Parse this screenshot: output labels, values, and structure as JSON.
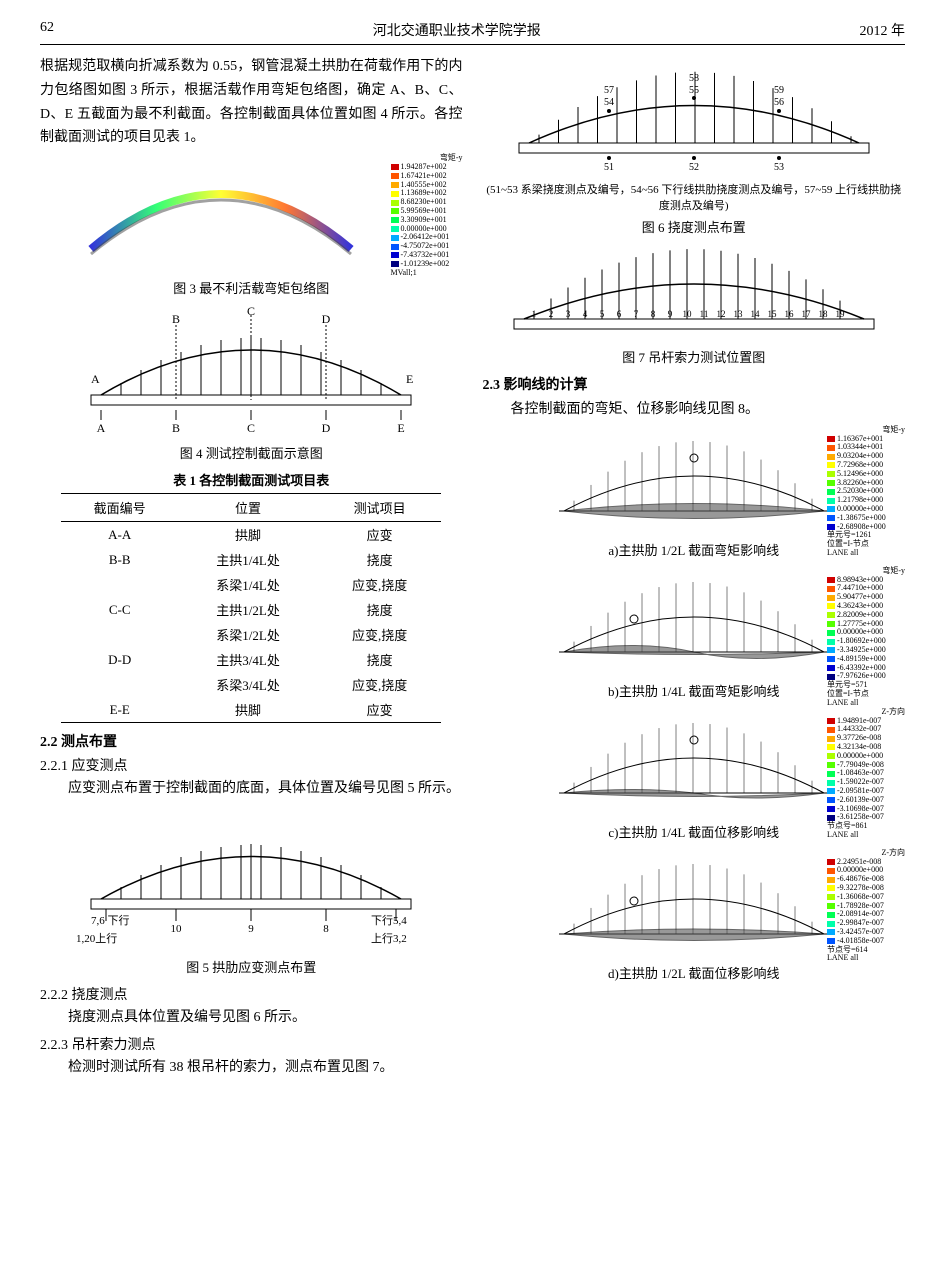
{
  "header": {
    "page_number": "62",
    "journal_title": "河北交通职业技术学院学报",
    "year": "2012 年"
  },
  "left_col": {
    "para1": "根据规范取横向折减系数为 0.55，钢管混凝土拱肋在荷载作用下的内力包络图如图 3 所示，根据活载作用弯矩包络图，确定 A、B、C、D、E 五截面为最不利截面。各控制截面具体位置如图 4 所示。各控制截面测试的项目见表 1。",
    "fig3_legend_title": "弯矩-y",
    "fig3_legend_values": [
      "1.94287e+002",
      "1.67421e+002",
      "1.40555e+002",
      "1.13689e+002",
      "8.68230e+001",
      "5.99569e+001",
      "3.30909e+001",
      "0.00000e+000",
      "-2.06412e+001",
      "-4.75072e+001",
      "-7.43732e+001",
      "-1.01239e+002"
    ],
    "fig3_legend_colors": [
      "#d00000",
      "#ff5500",
      "#ffaa00",
      "#ffff00",
      "#aaff00",
      "#55ff00",
      "#00ff55",
      "#00ffaa",
      "#00aaff",
      "#0055ff",
      "#0000d0",
      "#000080"
    ],
    "fig3_label": "MVall;1",
    "fig3_caption": "图 3  最不利活载弯矩包络图",
    "fig4": {
      "top_labels": [
        "B",
        "C",
        "D"
      ],
      "end_labels": [
        "A",
        "E"
      ],
      "bottom_labels": [
        "A",
        "B",
        "C",
        "D",
        "E"
      ],
      "caption": "图 4  测试控制截面示意图"
    },
    "table1": {
      "title": "表 1  各控制截面测试项目表",
      "headers": [
        "截面编号",
        "位置",
        "测试项目"
      ],
      "rows": [
        {
          "id": "A-A",
          "pos": "拱脚",
          "item": "应变"
        },
        {
          "id": "B-B",
          "pos": "主拱1/4L处",
          "item": "挠度"
        },
        {
          "id": "",
          "pos": "系梁1/4L处",
          "item": "应变,挠度"
        },
        {
          "id": "C-C",
          "pos": "主拱1/2L处",
          "item": "挠度"
        },
        {
          "id": "",
          "pos": "系梁1/2L处",
          "item": "应变,挠度"
        },
        {
          "id": "D-D",
          "pos": "主拱3/4L处",
          "item": "挠度"
        },
        {
          "id": "",
          "pos": "系梁3/4L处",
          "item": "应变,挠度"
        },
        {
          "id": "E-E",
          "pos": "拱脚",
          "item": "应变"
        }
      ]
    },
    "sec22": "2.2  测点布置",
    "sec221_h": "2.2.1  应变测点",
    "sec221_p": "应变测点布置于控制截面的底面，具体位置及编号见图 5 所示。",
    "fig5": {
      "left_top": "7,6 下行",
      "left_bot": "1,20上行",
      "right_top": "下行5,4",
      "right_bot": "上行3,2",
      "mid_labels": [
        "10",
        "9",
        "8"
      ],
      "caption": "图 5  拱肋应变测点布置"
    },
    "sec222_h": "2.2.2  挠度测点",
    "sec222_p": "挠度测点具体位置及编号见图 6 所示。",
    "sec223_h": "2.2.3  吊杆索力测点",
    "sec223_p": "检测时测试所有 38 根吊杆的索力，测点布置见图 7。"
  },
  "right_col": {
    "fig6": {
      "top_points": [
        "57",
        "54",
        "58",
        "55",
        "59",
        "56"
      ],
      "bottom_points": [
        "51",
        "52",
        "53"
      ],
      "note": "(51~53 系梁挠度测点及编号，54~56 下行线拱肋挠度测点及编号，57~59 上行线拱肋挠度测点及编号)",
      "caption": "图 6  挠度测点布置"
    },
    "fig7": {
      "numbers": [
        "1",
        "2",
        "3",
        "4",
        "5",
        "6",
        "7",
        "8",
        "9",
        "10",
        "11",
        "12",
        "13",
        "14",
        "15",
        "16",
        "17",
        "18",
        "19"
      ],
      "caption": "图 7  吊杆索力测试位置图"
    },
    "sec23_h": "2.3  影响线的计算",
    "sec23_p": "各控制截面的弯矩、位移影响线见图 8。",
    "influence": [
      {
        "caption": "a)主拱肋 1/2L 截面弯矩影响线",
        "legend_title": "弯矩-y",
        "legend_values": [
          "1.16367e+001",
          "1.03344e+001",
          "9.03204e+000",
          "7.72968e+000",
          "5.12496e+000",
          "3.82260e+000",
          "2.52030e+000",
          "1.21798e+000",
          "0.00000e+000",
          "-1.38675e+000",
          "-2.68908e+000"
        ],
        "note1": "单元号=1261",
        "note2": "位置=I-节点",
        "note3": "LANE all"
      },
      {
        "caption": "b)主拱肋 1/4L 截面弯矩影响线",
        "legend_title": "弯矩-y",
        "legend_values": [
          "8.98943e+000",
          "7.44710e+000",
          "5.90477e+000",
          "4.36243e+000",
          "2.82009e+000",
          "1.27775e+000",
          "0.00000e+000",
          "-1.80692e+000",
          "-3.34925e+000",
          "-4.89159e+000",
          "-6.43392e+000",
          "-7.97626e+000"
        ],
        "note1": "单元号=571",
        "note2": "位置=I-节点",
        "note3": "LANE all"
      },
      {
        "caption": "c)主拱肋 1/4L 截面位移影响线",
        "legend_title": "Z-方向",
        "legend_values": [
          "1.94891e-007",
          "1.44332e-007",
          "9.37726e-008",
          "4.32134e-008",
          "0.00000e+000",
          "-7.79049e-008",
          "-1.08463e-007",
          "-1.59022e-007",
          "-2.09581e-007",
          "-2.60139e-007",
          "-3.10698e-007",
          "-3.61258e-007"
        ],
        "note1": "节点号=861",
        "note2": "",
        "note3": "LANE all"
      },
      {
        "caption": "d)主拱肋 1/2L 截面位移影响线",
        "legend_title": "Z-方向",
        "legend_values": [
          "2.24951e-008",
          "0.00000e+000",
          "-6.48676e-008",
          "-9.32278e-008",
          "-1.36068e-007",
          "-1.78928e-007",
          "-2.08914e-007",
          "-2.99847e-007",
          "-3.42457e-007",
          "-4.01858e-007"
        ],
        "note1": "节点号=614",
        "note2": "",
        "note3": "LANE all"
      }
    ],
    "legend_colors": [
      "#d00000",
      "#ff5500",
      "#ffaa00",
      "#ffff00",
      "#aaff00",
      "#55ff00",
      "#00ff55",
      "#00ffaa",
      "#00aaff",
      "#0055ff",
      "#0000d0",
      "#000080"
    ]
  },
  "svg": {
    "arch_stroke": "#000000",
    "arch_width": 1.2,
    "background": "#ffffff"
  }
}
